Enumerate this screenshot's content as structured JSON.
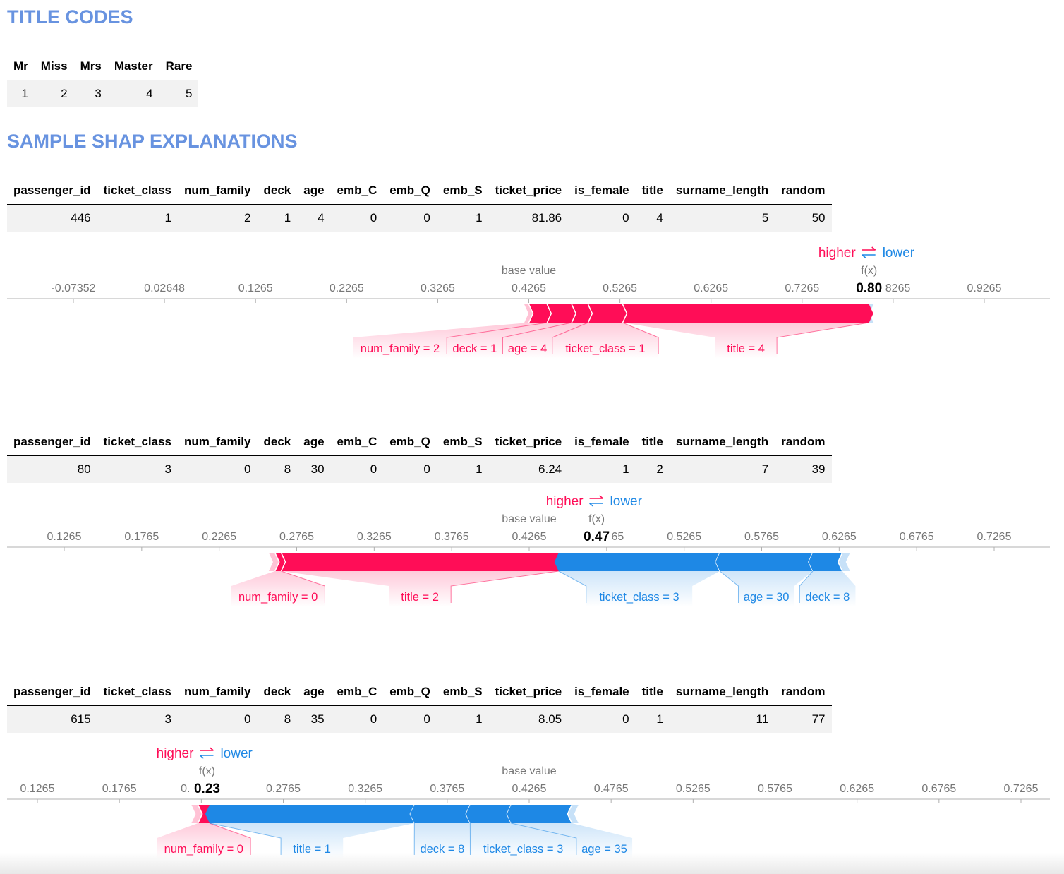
{
  "title_codes": {
    "heading": "TITLE CODES",
    "columns": [
      "Mr",
      "Miss",
      "Mrs",
      "Master",
      "Rare"
    ],
    "values": [
      "1",
      "2",
      "3",
      "4",
      "5"
    ]
  },
  "shap_heading": "SAMPLE SHAP EXPLANATIONS",
  "colors": {
    "positive": "#ff0d57",
    "negative": "#1e88e5",
    "heading": "#6893e0"
  },
  "labels": {
    "higher": "higher",
    "lower": "lower",
    "base_value": "base value",
    "fx": "f(x)"
  },
  "chart_data": [
    {
      "type": "force",
      "table": {
        "columns": [
          "passenger_id",
          "ticket_class",
          "num_family",
          "deck",
          "age",
          "emb_C",
          "emb_Q",
          "emb_S",
          "ticket_price",
          "is_female",
          "title",
          "surname_length",
          "random"
        ],
        "values": [
          "446",
          "1",
          "2",
          "1",
          "4",
          "0",
          "0",
          "1",
          "81.86",
          "0",
          "4",
          "5",
          "50"
        ]
      },
      "axis": {
        "ticks": [
          "-0.07352",
          "0.02648",
          "0.1265",
          "0.2265",
          "0.3265",
          "0.4265",
          "0.5265",
          "0.6265",
          "0.7265",
          "0.8265",
          "0.9265"
        ],
        "tick_values": [
          -0.07352,
          0.02648,
          0.1265,
          0.2265,
          0.3265,
          0.4265,
          0.5265,
          0.6265,
          0.7265,
          0.8265,
          0.9265
        ]
      },
      "base_value": 0.4265,
      "fx": 0.8,
      "fx_label": "0.80",
      "features": [
        {
          "label": "num_family = 2",
          "sign": "positive",
          "start": 0.4265,
          "end": 0.4465
        },
        {
          "label": "deck = 1",
          "sign": "positive",
          "start": 0.4465,
          "end": 0.4735
        },
        {
          "label": "age = 4",
          "sign": "positive",
          "start": 0.4735,
          "end": 0.4915
        },
        {
          "label": "ticket_class = 1",
          "sign": "positive",
          "start": 0.4915,
          "end": 0.5295
        },
        {
          "label": "title = 4",
          "sign": "positive",
          "start": 0.5295,
          "end": 0.8
        }
      ],
      "tail": {
        "positive": [
          0.4215,
          0.4265
        ],
        "negative": [
          0.8,
          0.805
        ]
      }
    },
    {
      "type": "force",
      "table": {
        "columns": [
          "passenger_id",
          "ticket_class",
          "num_family",
          "deck",
          "age",
          "emb_C",
          "emb_Q",
          "emb_S",
          "ticket_price",
          "is_female",
          "title",
          "surname_length",
          "random"
        ],
        "values": [
          "80",
          "3",
          "0",
          "8",
          "30",
          "0",
          "0",
          "1",
          "6.24",
          "1",
          "2",
          "7",
          "39"
        ]
      },
      "axis": {
        "ticks": [
          "0.1265",
          "0.1765",
          "0.2265",
          "0.2765",
          "0.3265",
          "0.3765",
          "0.4265",
          "0.4765",
          "0.5265",
          "0.5765",
          "0.6265",
          "0.6765",
          "0.7265"
        ],
        "tick_values": [
          0.1265,
          0.1765,
          0.2265,
          0.2765,
          0.3265,
          0.3765,
          0.4265,
          0.4765,
          0.5265,
          0.5765,
          0.6265,
          0.6765,
          0.7265
        ]
      },
      "base_value": 0.4265,
      "fx": 0.47,
      "fx_label": "0.47",
      "features": [
        {
          "label": "num_family = 0",
          "sign": "positive",
          "start": 0.2625,
          "end": 0.2665
        },
        {
          "label": "title = 2",
          "sign": "positive",
          "start": 0.2665,
          "end": 0.4455
        },
        {
          "label": "ticket_class = 3",
          "sign": "negative",
          "start": 0.4455,
          "end": 0.5495
        },
        {
          "label": "age = 30",
          "sign": "negative",
          "start": 0.5495,
          "end": 0.6095
        },
        {
          "label": "deck = 8",
          "sign": "negative",
          "start": 0.6095,
          "end": 0.6285
        }
      ],
      "tail": {
        "positive": [
          0.2585,
          0.2625
        ],
        "negative": [
          0.6285,
          0.6335
        ]
      }
    },
    {
      "type": "force",
      "table": {
        "columns": [
          "passenger_id",
          "ticket_class",
          "num_family",
          "deck",
          "age",
          "emb_C",
          "emb_Q",
          "emb_S",
          "ticket_price",
          "is_female",
          "title",
          "surname_length",
          "random"
        ],
        "values": [
          "615",
          "3",
          "0",
          "8",
          "35",
          "0",
          "0",
          "1",
          "8.05",
          "0",
          "1",
          "11",
          "77"
        ]
      },
      "axis": {
        "ticks": [
          "0.1265",
          "0.1765",
          "0.2265",
          "0.2765",
          "0.3265",
          "0.3765",
          "0.4265",
          "0.4765",
          "0.5265",
          "0.5765",
          "0.6265",
          "0.6765",
          "0.7265"
        ],
        "tick_values": [
          0.1265,
          0.1765,
          0.2265,
          0.2765,
          0.3265,
          0.3765,
          0.4265,
          0.4765,
          0.5265,
          0.5765,
          0.6265,
          0.6765,
          0.7265
        ],
        "overlapped_tick_label": "0."
      },
      "base_value": 0.4265,
      "fx": 0.23,
      "fx_label": "0.23",
      "features": [
        {
          "label": "num_family = 0",
          "sign": "positive",
          "start": 0.2245,
          "end": 0.2315
        },
        {
          "label": "title = 1",
          "sign": "negative",
          "start": 0.2315,
          "end": 0.3565
        },
        {
          "label": "deck = 8",
          "sign": "negative",
          "start": 0.3565,
          "end": 0.3905
        },
        {
          "label": "ticket_class = 3",
          "sign": "negative",
          "start": 0.3905,
          "end": 0.4155
        },
        {
          "label": "age = 35",
          "sign": "negative",
          "start": 0.4155,
          "end": 0.4525
        }
      ],
      "tail": {
        "positive": [
          0.2205,
          0.2245
        ],
        "negative": [
          0.4525,
          0.4565
        ]
      }
    }
  ]
}
